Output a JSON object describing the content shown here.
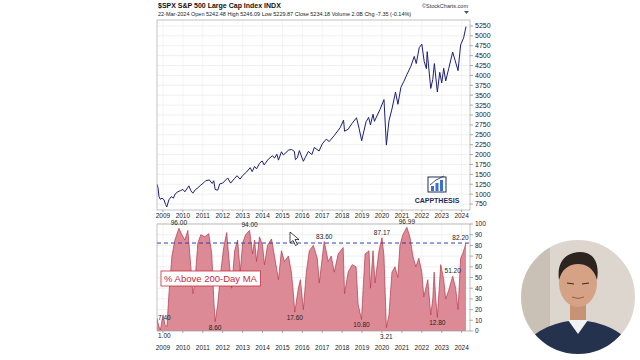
{
  "chart_data": [
    {
      "type": "line",
      "title": "$SPX S&P 500 Large Cap Index INDX",
      "subtitle": "22-Mar-2024  Open 5242.48  High 5246.09  Low 5229.87  Close 5234.18  Volume 2.0B  Chg -7.35 (-0.14%)",
      "annotations": [
        {
          "text": "©StockCharts.com"
        },
        {
          "text": "CAPPTHESIS"
        }
      ],
      "x": [
        2008.7,
        2008.75,
        2008.8,
        2008.87,
        2008.95,
        2009.05,
        2009.13,
        2009.19,
        2009.3,
        2009.42,
        2009.52,
        2009.62,
        2009.75,
        2009.88,
        2010.0,
        2010.1,
        2010.3,
        2010.4,
        2010.5,
        2010.62,
        2010.75,
        2010.9,
        2011.05,
        2011.15,
        2011.33,
        2011.47,
        2011.55,
        2011.62,
        2011.75,
        2011.85,
        2012.0,
        2012.25,
        2012.4,
        2012.6,
        2012.72,
        2012.87,
        2013.0,
        2013.2,
        2013.38,
        2013.48,
        2013.6,
        2013.7,
        2013.85,
        2013.98,
        2014.08,
        2014.3,
        2014.5,
        2014.6,
        2014.72,
        2014.8,
        2014.95,
        2015.05,
        2015.3,
        2015.45,
        2015.6,
        2015.65,
        2015.75,
        2015.85,
        2016.05,
        2016.15,
        2016.3,
        2016.48,
        2016.6,
        2016.84,
        2017.0,
        2017.2,
        2017.35,
        2017.6,
        2017.9,
        2018.07,
        2018.12,
        2018.3,
        2018.5,
        2018.72,
        2018.85,
        2018.98,
        2019.2,
        2019.33,
        2019.42,
        2019.55,
        2019.62,
        2019.9,
        2020.1,
        2020.22,
        2020.35,
        2020.5,
        2020.68,
        2020.8,
        2020.95,
        2021.1,
        2021.25,
        2021.45,
        2021.62,
        2021.72,
        2021.87,
        2022.0,
        2022.12,
        2022.23,
        2022.27,
        2022.45,
        2022.55,
        2022.63,
        2022.78,
        2022.9,
        2023.0,
        2023.1,
        2023.2,
        2023.35,
        2023.55,
        2023.82,
        2023.95,
        2024.1,
        2024.22
      ],
      "series": [
        {
          "color": "#1b1f7a",
          "values": [
            1250,
            1160,
            940,
            870,
            900,
            860,
            740,
            676,
            860,
            940,
            900,
            1010,
            1060,
            1090,
            1120,
            1060,
            1210,
            1090,
            1025,
            1110,
            1160,
            1230,
            1290,
            1340,
            1360,
            1270,
            1340,
            1120,
            1100,
            1260,
            1280,
            1410,
            1280,
            1400,
            1465,
            1380,
            1470,
            1560,
            1670,
            1570,
            1700,
            1640,
            1780,
            1840,
            1740,
            1890,
            1970,
            1910,
            2010,
            1860,
            2070,
            1990,
            2110,
            2130,
            2080,
            1870,
            1920,
            2100,
            1830,
            1930,
            2080,
            2000,
            2180,
            2090,
            2270,
            2390,
            2330,
            2480,
            2680,
            2870,
            2590,
            2640,
            2790,
            2930,
            2660,
            2350,
            2830,
            2940,
            2750,
            3020,
            2840,
            3140,
            3390,
            2240,
            2850,
            3150,
            3580,
            3270,
            3700,
            3850,
            4020,
            4230,
            4480,
            4300,
            4700,
            4790,
            4350,
            4170,
            4600,
            3670,
            3900,
            4300,
            3580,
            4080,
            3810,
            4180,
            3860,
            4170,
            4590,
            4120,
            4770,
            4950,
            5234.18
          ]
        }
      ],
      "xlim": [
        2008.7,
        2024.42
      ],
      "xticks": [
        2009,
        2010,
        2011,
        2012,
        2013,
        2014,
        2015,
        2016,
        2017,
        2018,
        2019,
        2020,
        2021,
        2022,
        2023,
        2024
      ],
      "ylim": [
        600,
        5400
      ],
      "yticks": [
        750,
        1000,
        1250,
        1500,
        1750,
        2000,
        2250,
        2500,
        2750,
        3000,
        3250,
        3500,
        3750,
        4000,
        4250,
        4500,
        4750,
        5000,
        5250
      ],
      "grid": true
    },
    {
      "type": "area",
      "title": "% Above 200-Day MA",
      "x": [
        2008.7,
        2008.75,
        2008.8,
        2008.87,
        2009.0,
        2009.1,
        2009.2,
        2009.3,
        2009.45,
        2009.6,
        2009.8,
        2009.95,
        2010.1,
        2010.25,
        2010.4,
        2010.5,
        2010.6,
        2010.75,
        2010.9,
        2011.1,
        2011.3,
        2011.45,
        2011.55,
        2011.62,
        2011.75,
        2011.9,
        2012.05,
        2012.2,
        2012.35,
        2012.45,
        2012.6,
        2012.75,
        2012.88,
        2013.0,
        2013.15,
        2013.35,
        2013.5,
        2013.6,
        2013.7,
        2013.85,
        2014.0,
        2014.1,
        2014.25,
        2014.45,
        2014.6,
        2014.8,
        2014.95,
        2015.1,
        2015.3,
        2015.45,
        2015.55,
        2015.62,
        2015.8,
        2015.9,
        2016.05,
        2016.2,
        2016.35,
        2016.55,
        2016.75,
        2016.85,
        2017.1,
        2017.3,
        2017.45,
        2017.6,
        2017.8,
        2018.05,
        2018.12,
        2018.3,
        2018.5,
        2018.7,
        2018.8,
        2018.97,
        2019.15,
        2019.35,
        2019.42,
        2019.55,
        2019.65,
        2019.85,
        2020.0,
        2020.1,
        2020.22,
        2020.35,
        2020.5,
        2020.65,
        2020.8,
        2020.9,
        2021.05,
        2021.25,
        2021.4,
        2021.55,
        2021.7,
        2021.85,
        2022.0,
        2022.1,
        2022.2,
        2022.3,
        2022.45,
        2022.55,
        2022.62,
        2022.7,
        2022.78,
        2022.95,
        2023.1,
        2023.2,
        2023.35,
        2023.55,
        2023.7,
        2023.82,
        2023.95,
        2024.05,
        2024.15,
        2024.22
      ],
      "series": [
        {
          "color": "#dc8a95",
          "values": [
            12,
            7.4,
            4,
            1,
            15,
            6,
            4,
            35,
            70,
            85,
            96,
            90,
            85,
            94,
            60,
            35,
            45,
            82,
            90,
            88,
            91,
            72,
            30,
            8.6,
            25,
            55,
            78,
            92,
            60,
            40,
            75,
            85,
            55,
            82,
            90,
            94,
            72,
            85,
            65,
            88,
            80,
            62,
            80,
            86,
            70,
            48,
            75,
            65,
            70,
            55,
            35,
            17.6,
            40,
            48,
            20,
            55,
            75,
            80,
            68,
            45,
            83.6,
            65,
            70,
            55,
            72,
            78,
            35,
            55,
            62,
            60,
            25,
            10.8,
            72,
            75,
            40,
            75,
            45,
            75,
            87.17,
            70,
            3.21,
            15,
            55,
            60,
            50,
            80,
            90,
            96.99,
            88,
            70,
            60,
            68,
            55,
            32,
            40,
            48,
            15,
            30,
            55,
            30,
            12.8,
            62,
            48,
            30,
            38,
            51.2,
            40,
            20,
            68,
            72,
            78,
            82.2
          ]
        }
      ],
      "annotations": [
        {
          "x": 2008.87,
          "y": 1,
          "text": "1.00"
        },
        {
          "x": 2008.75,
          "y": 7.4,
          "text": "7.40"
        },
        {
          "x": 2009.8,
          "y": 96,
          "text": "96.00"
        },
        {
          "x": 2011.62,
          "y": 8.6,
          "text": "8.60"
        },
        {
          "x": 2013.35,
          "y": 94,
          "text": "94.00"
        },
        {
          "x": 2015.62,
          "y": 17.6,
          "text": "17.60"
        },
        {
          "x": 2017.1,
          "y": 83.6,
          "text": "83.60"
        },
        {
          "x": 2018.97,
          "y": 10.8,
          "text": "10.80"
        },
        {
          "x": 2020.0,
          "y": 87.17,
          "text": "87.17"
        },
        {
          "x": 2020.22,
          "y": 3.21,
          "text": "3.21"
        },
        {
          "x": 2021.25,
          "y": 96.99,
          "text": "96.99"
        },
        {
          "x": 2022.78,
          "y": 12.8,
          "text": "12.80"
        },
        {
          "x": 2023.55,
          "y": 51.2,
          "text": "51.20"
        },
        {
          "x": 2024.22,
          "y": 82.2,
          "text": "82.20"
        }
      ],
      "reference_line": {
        "value": 82.2,
        "color": "#2b3fb5",
        "line_style": "dashed"
      },
      "xlim": [
        2008.7,
        2024.42
      ],
      "xticks": [
        2009,
        2010,
        2011,
        2012,
        2013,
        2014,
        2015,
        2016,
        2017,
        2018,
        2019,
        2020,
        2021,
        2022,
        2023,
        2024
      ],
      "ylim": [
        0,
        100
      ],
      "yticks": [
        0,
        10,
        20,
        30,
        40,
        50,
        60,
        70,
        80,
        90,
        100
      ],
      "grid": true
    }
  ]
}
